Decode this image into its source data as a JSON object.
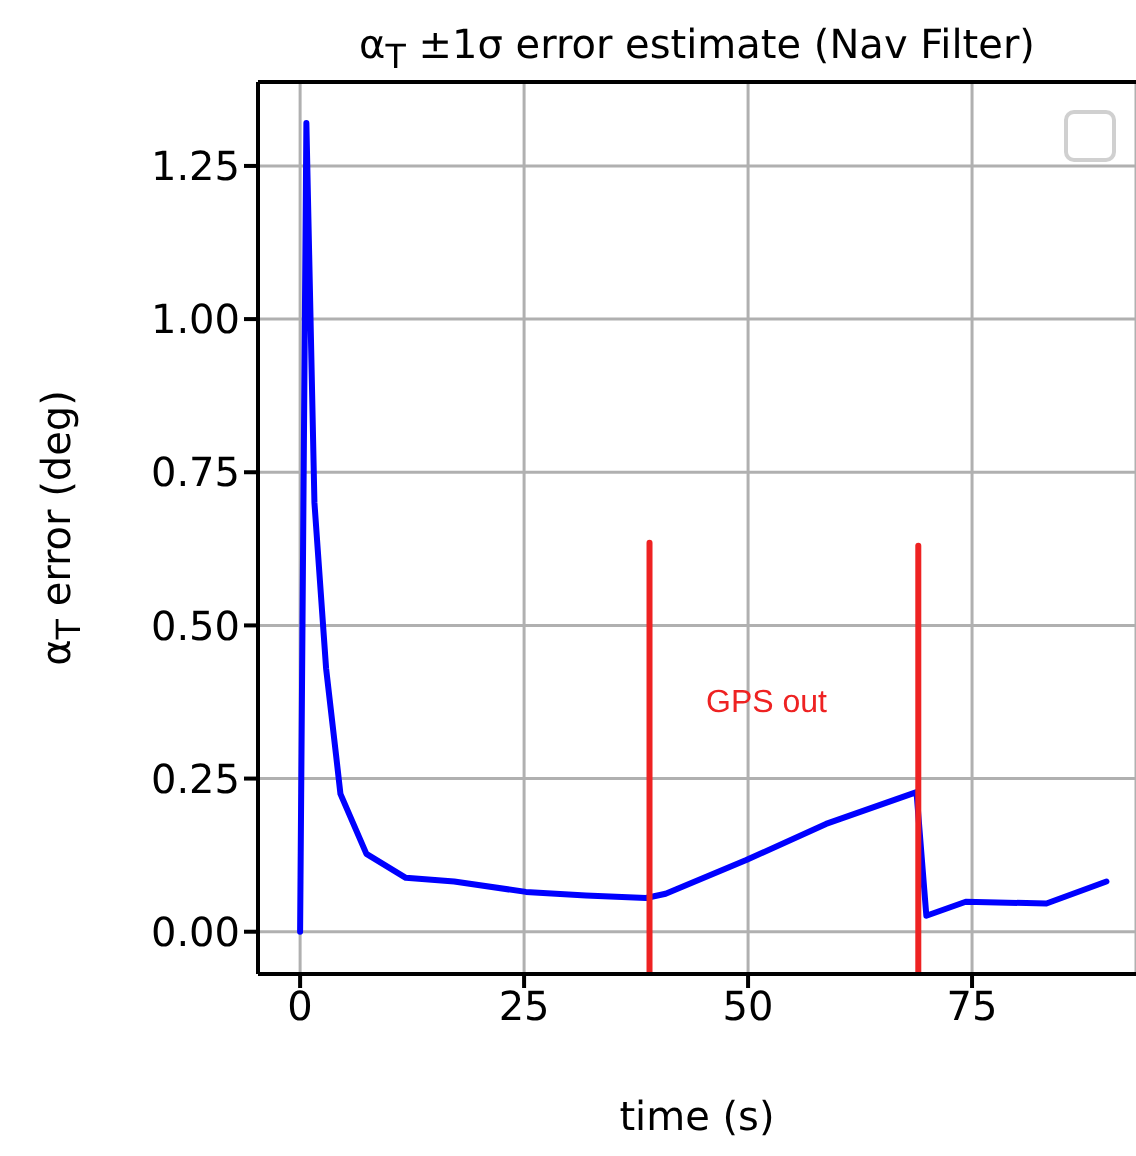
{
  "chart_data": {
    "type": "line",
    "title": "α$_{T}$ ±1σ error estimate (Nav Filter)",
    "xlabel": "time (s)",
    "ylabel": "α$_{T}$ error (deg)",
    "series": [
      {
        "color": "#0000ff",
        "x": [
          0,
          0.7,
          1.6,
          2.9,
          4.0,
          4.5,
          7.4,
          11.8,
          17.2,
          25.2,
          31.9,
          38.6,
          40.8,
          49.8,
          58.7,
          68.8,
          69.9,
          74.3,
          83.3,
          90
        ],
        "values": [
          0,
          1.32,
          0.7,
          0.43,
          0.29,
          0.225,
          0.127,
          0.088,
          0.082,
          0.065,
          0.059,
          0.055,
          0.062,
          0.117,
          0.176,
          0.228,
          0.026,
          0.049,
          0.046,
          0.082
        ]
      },
      {
        "color": "#ee2222",
        "x": [
          39,
          39
        ],
        "values": [
          -0.069,
          0.635
        ]
      },
      {
        "color": "#ee2222",
        "x": [
          69,
          69
        ],
        "values": [
          -0.069,
          0.63
        ]
      }
    ],
    "annotations": [
      "GPS out"
    ],
    "xlim": [
      -4.7,
      93.3
    ],
    "ylim": [
      -0.069,
      1.387
    ],
    "xticks": [
      0,
      25,
      50,
      75
    ],
    "yticks": [
      {
        "value": 0,
        "label": "0.00"
      },
      {
        "value": 0.25,
        "label": "0.25"
      },
      {
        "value": 0.5,
        "label": "0.50"
      },
      {
        "value": 0.75,
        "label": "0.75"
      },
      {
        "value": 1,
        "label": "1.00"
      },
      {
        "value": 1.25,
        "label": "1.25"
      }
    ],
    "grid": true,
    "line_style": "solid",
    "marker": "none"
  }
}
